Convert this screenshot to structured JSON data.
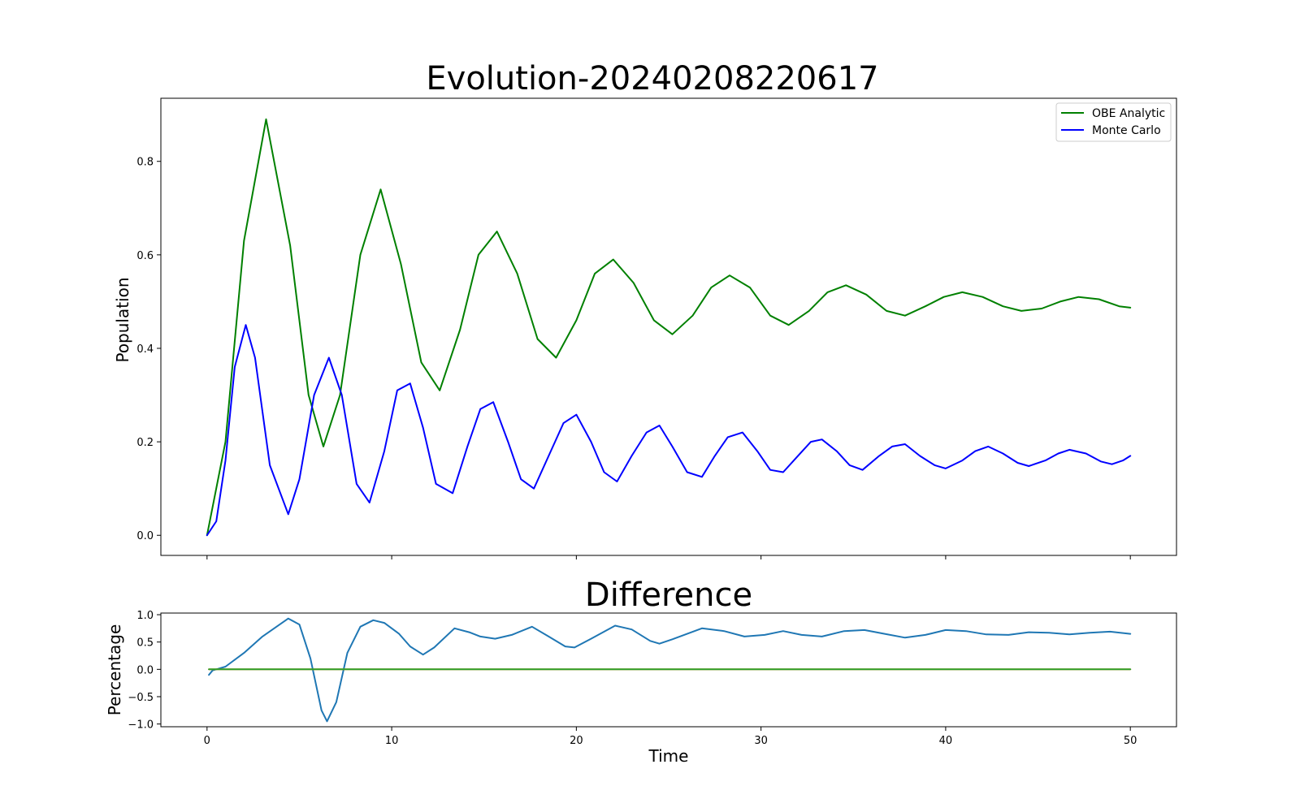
{
  "chart_data": [
    {
      "type": "line",
      "title": "Evolution-20240208220617",
      "xlabel": "",
      "ylabel": "Population",
      "xlim": [
        -2.5,
        52.5
      ],
      "ylim": [
        -0.043,
        0.935
      ],
      "x_ticks": [
        0,
        10,
        20,
        30,
        40,
        50
      ],
      "y_ticks": [
        0.0,
        0.2,
        0.4,
        0.6,
        0.8
      ],
      "y_tick_labels": [
        "0.0",
        "0.2",
        "0.4",
        "0.6",
        "0.8"
      ],
      "grid": false,
      "legend_position": "upper right",
      "series": [
        {
          "name": "OBE Analytic",
          "color": "#008000",
          "x": [
            0,
            1,
            2,
            3.2,
            4.5,
            5.5,
            6.3,
            7.2,
            8.3,
            9.4,
            10.5,
            11.6,
            12.6,
            13.7,
            14.7,
            15.7,
            16.8,
            17.9,
            18.9,
            20,
            21,
            22,
            23.1,
            24.2,
            25.2,
            26.3,
            27.3,
            28.3,
            29.4,
            30.5,
            31.5,
            32.6,
            33.6,
            34.6,
            35.7,
            36.8,
            37.8,
            38.9,
            39.9,
            40.9,
            42,
            43.1,
            44.1,
            45.2,
            46.2,
            47.2,
            48.3,
            49.4,
            50
          ],
          "y": [
            0.0,
            0.2,
            0.63,
            0.89,
            0.62,
            0.3,
            0.19,
            0.3,
            0.6,
            0.74,
            0.58,
            0.37,
            0.31,
            0.44,
            0.6,
            0.65,
            0.56,
            0.42,
            0.38,
            0.46,
            0.56,
            0.59,
            0.54,
            0.46,
            0.43,
            0.47,
            0.53,
            0.556,
            0.53,
            0.47,
            0.45,
            0.48,
            0.52,
            0.535,
            0.515,
            0.48,
            0.47,
            0.49,
            0.51,
            0.52,
            0.51,
            0.49,
            0.48,
            0.485,
            0.5,
            0.51,
            0.505,
            0.49,
            0.487
          ]
        },
        {
          "name": "Monte Carlo",
          "color": "#0000ff",
          "x": [
            0,
            0.5,
            1,
            1.5,
            2.1,
            2.6,
            3.4,
            4.4,
            5.0,
            5.8,
            6.6,
            7.3,
            8.1,
            8.8,
            9.6,
            10.3,
            11.0,
            11.7,
            12.4,
            13.3,
            14.1,
            14.8,
            15.5,
            16.3,
            17.0,
            17.7,
            18.5,
            19.3,
            20.0,
            20.8,
            21.5,
            22.2,
            23.0,
            23.8,
            24.5,
            25.2,
            26.0,
            26.8,
            27.5,
            28.2,
            29.0,
            29.8,
            30.5,
            31.2,
            32.0,
            32.7,
            33.3,
            34.1,
            34.8,
            35.5,
            36.4,
            37.1,
            37.8,
            38.6,
            39.4,
            40.0,
            40.9,
            41.6,
            42.3,
            43.1,
            43.9,
            44.5,
            45.4,
            46.1,
            46.7,
            47.6,
            48.4,
            49.0,
            49.6,
            50.0
          ],
          "y": [
            0.0,
            0.03,
            0.16,
            0.36,
            0.45,
            0.38,
            0.15,
            0.045,
            0.12,
            0.3,
            0.38,
            0.3,
            0.11,
            0.07,
            0.18,
            0.31,
            0.325,
            0.23,
            0.11,
            0.09,
            0.19,
            0.27,
            0.285,
            0.2,
            0.12,
            0.1,
            0.17,
            0.24,
            0.258,
            0.2,
            0.135,
            0.115,
            0.17,
            0.22,
            0.235,
            0.19,
            0.135,
            0.125,
            0.17,
            0.21,
            0.22,
            0.18,
            0.14,
            0.135,
            0.17,
            0.2,
            0.205,
            0.18,
            0.15,
            0.14,
            0.17,
            0.19,
            0.195,
            0.17,
            0.15,
            0.143,
            0.16,
            0.18,
            0.19,
            0.175,
            0.155,
            0.148,
            0.16,
            0.175,
            0.183,
            0.175,
            0.158,
            0.152,
            0.16,
            0.17
          ]
        }
      ]
    },
    {
      "type": "line",
      "title": "Difference",
      "xlabel": "Time",
      "ylabel": "Percentage",
      "xlim": [
        -2.5,
        52.5
      ],
      "ylim": [
        -1.05,
        1.03
      ],
      "x_ticks": [
        0,
        10,
        20,
        30,
        40,
        50
      ],
      "y_ticks": [
        -1.0,
        -0.5,
        0.0,
        0.5,
        1.0
      ],
      "y_tick_labels": [
        "−1.0",
        "−0.5",
        "0.0",
        "0.5",
        "1.0"
      ],
      "grid": false,
      "series": [
        {
          "color": "#1f77b4",
          "x": [
            0.1,
            0.3,
            0.5,
            1.0,
            2.0,
            3.0,
            4.4,
            5.0,
            5.6,
            6.2,
            6.5,
            7.0,
            7.6,
            8.3,
            9.0,
            9.6,
            10.4,
            11.0,
            11.7,
            12.3,
            13.4,
            14.2,
            14.8,
            15.6,
            16.5,
            17.6,
            18.5,
            19.4,
            19.9,
            20.8,
            22.1,
            23.0,
            24.0,
            24.5,
            25.2,
            26.8,
            28.0,
            29.1,
            30.2,
            31.2,
            32.2,
            33.3,
            34.5,
            35.6,
            36.7,
            37.8,
            38.9,
            40.0,
            41.1,
            42.2,
            43.4,
            44.5,
            45.6,
            46.7,
            47.8,
            48.9,
            50.0
          ],
          "y": [
            -0.1,
            -0.02,
            0.0,
            0.05,
            0.3,
            0.6,
            0.93,
            0.82,
            0.2,
            -0.75,
            -0.95,
            -0.6,
            0.3,
            0.78,
            0.9,
            0.85,
            0.65,
            0.42,
            0.27,
            0.4,
            0.75,
            0.68,
            0.6,
            0.56,
            0.63,
            0.78,
            0.6,
            0.42,
            0.4,
            0.56,
            0.8,
            0.73,
            0.52,
            0.47,
            0.55,
            0.75,
            0.7,
            0.6,
            0.63,
            0.7,
            0.63,
            0.6,
            0.7,
            0.72,
            0.65,
            0.58,
            0.63,
            0.72,
            0.7,
            0.64,
            0.63,
            0.68,
            0.67,
            0.64,
            0.67,
            0.69,
            0.65
          ]
        },
        {
          "color": "#ff7f0e",
          "x": [
            0.1,
            50.0
          ],
          "y": [
            0.0,
            0.0
          ]
        },
        {
          "color": "#2ca02c",
          "x": [
            0.1,
            50.0
          ],
          "y": [
            0.0,
            0.0
          ]
        }
      ]
    }
  ]
}
